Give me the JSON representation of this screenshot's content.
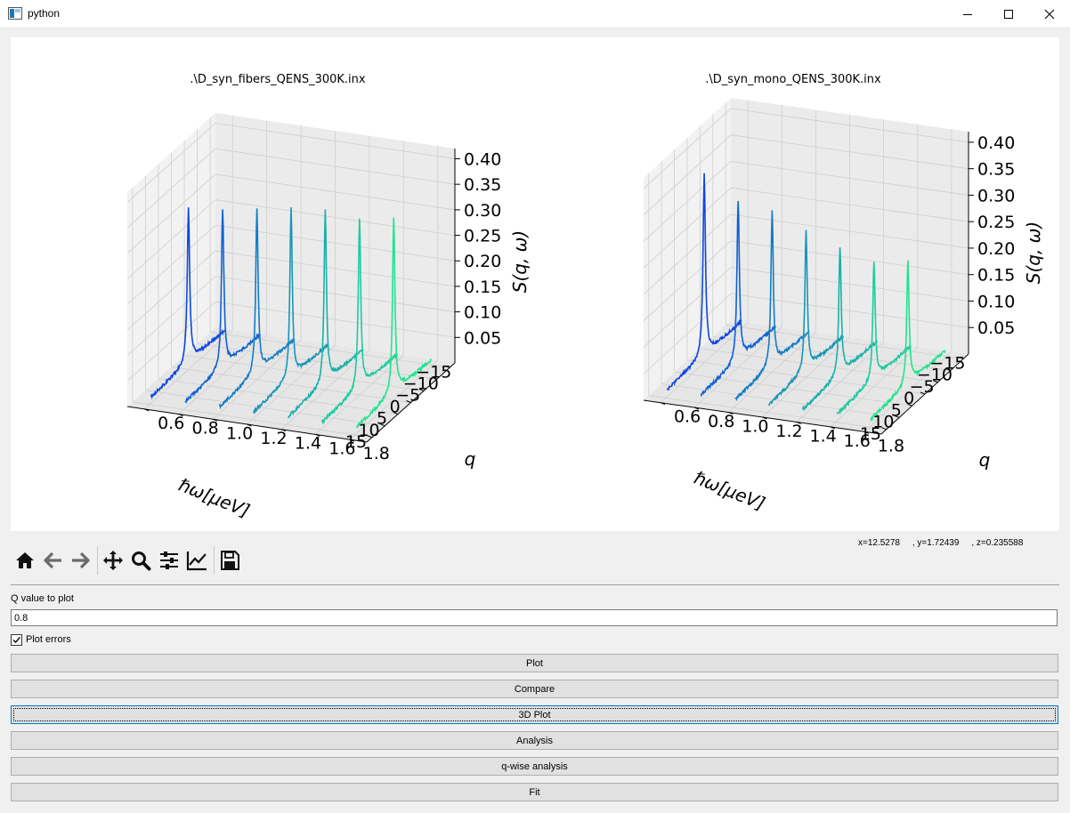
{
  "window": {
    "title": "python"
  },
  "plots": [
    {
      "title": ".\\D_syn_fibers_QENS_300K.inx",
      "xlabel": "ℏω[μeV]",
      "ylabel": "q",
      "zlabel": "S(q, ω)",
      "x_ticks": [
        "−15",
        "−10",
        "−5",
        "0",
        "5",
        "10",
        "15"
      ],
      "y_ticks": [
        "0.6",
        "0.8",
        "1.0",
        "1.2",
        "1.4",
        "1.6",
        "1.8"
      ],
      "z_ticks": [
        "0.05",
        "0.10",
        "0.15",
        "0.20",
        "0.25",
        "0.30",
        "0.35",
        "0.40"
      ]
    },
    {
      "title": ".\\D_syn_mono_QENS_300K.inx",
      "xlabel": "ℏω[μeV]",
      "ylabel": "q",
      "zlabel": "S(q, ω)",
      "x_ticks": [
        "−15",
        "−10",
        "−5",
        "0",
        "5",
        "10",
        "15"
      ],
      "y_ticks": [
        "0.6",
        "0.8",
        "1.0",
        "1.2",
        "1.4",
        "1.6",
        "1.8"
      ],
      "z_ticks": [
        "0.05",
        "0.10",
        "0.15",
        "0.20",
        "0.25",
        "0.30",
        "0.35",
        "0.40"
      ]
    }
  ],
  "chart_data": [
    {
      "type": "line",
      "title": ".\\D_syn_fibers_QENS_300K.inx",
      "xlabel": "ℏω[μeV]",
      "ylabel": "q",
      "zlabel": "S(q, ω)",
      "xlim": [
        -17,
        17
      ],
      "ylim": [
        0.5,
        1.9
      ],
      "zlim": [
        0.0,
        0.42
      ],
      "series": [
        {
          "q": 0.6,
          "peak": 0.3
        },
        {
          "q": 0.8,
          "peak": 0.31
        },
        {
          "q": 1.0,
          "peak": 0.32
        },
        {
          "q": 1.2,
          "peak": 0.33
        },
        {
          "q": 1.4,
          "peak": 0.34
        },
        {
          "q": 1.6,
          "peak": 0.33
        },
        {
          "q": 1.8,
          "peak": 0.34
        }
      ]
    },
    {
      "type": "line",
      "title": ".\\D_syn_mono_QENS_300K.inx",
      "xlabel": "ℏω[μeV]",
      "ylabel": "q",
      "zlabel": "S(q, ω)",
      "xlim": [
        -17,
        17
      ],
      "ylim": [
        0.5,
        1.9
      ],
      "zlim": [
        0.0,
        0.42
      ],
      "series": [
        {
          "q": 0.6,
          "peak": 0.34
        },
        {
          "q": 0.8,
          "peak": 0.3
        },
        {
          "q": 1.0,
          "peak": 0.29
        },
        {
          "q": 1.2,
          "peak": 0.26
        },
        {
          "q": 1.4,
          "peak": 0.24
        },
        {
          "q": 1.6,
          "peak": 0.22
        },
        {
          "q": 1.8,
          "peak": 0.23
        }
      ]
    }
  ],
  "toolbar": {
    "items": [
      "home-icon",
      "back-icon",
      "forward-icon",
      "pan-icon",
      "zoom-icon",
      "subplots-config-icon",
      "axes-edit-icon",
      "save-icon"
    ],
    "coords": "x=12.5278     , y=1.72439     , z=0.235588"
  },
  "form": {
    "q_label": "Q value to plot",
    "q_value": "0.8",
    "plot_errors_label": "Plot errors",
    "plot_errors_checked": true
  },
  "buttons": {
    "plot": "Plot",
    "compare": "Compare",
    "plot3d": "3D Plot",
    "analysis": "Analysis",
    "qwise": "q-wise analysis",
    "fit": "Fit"
  }
}
